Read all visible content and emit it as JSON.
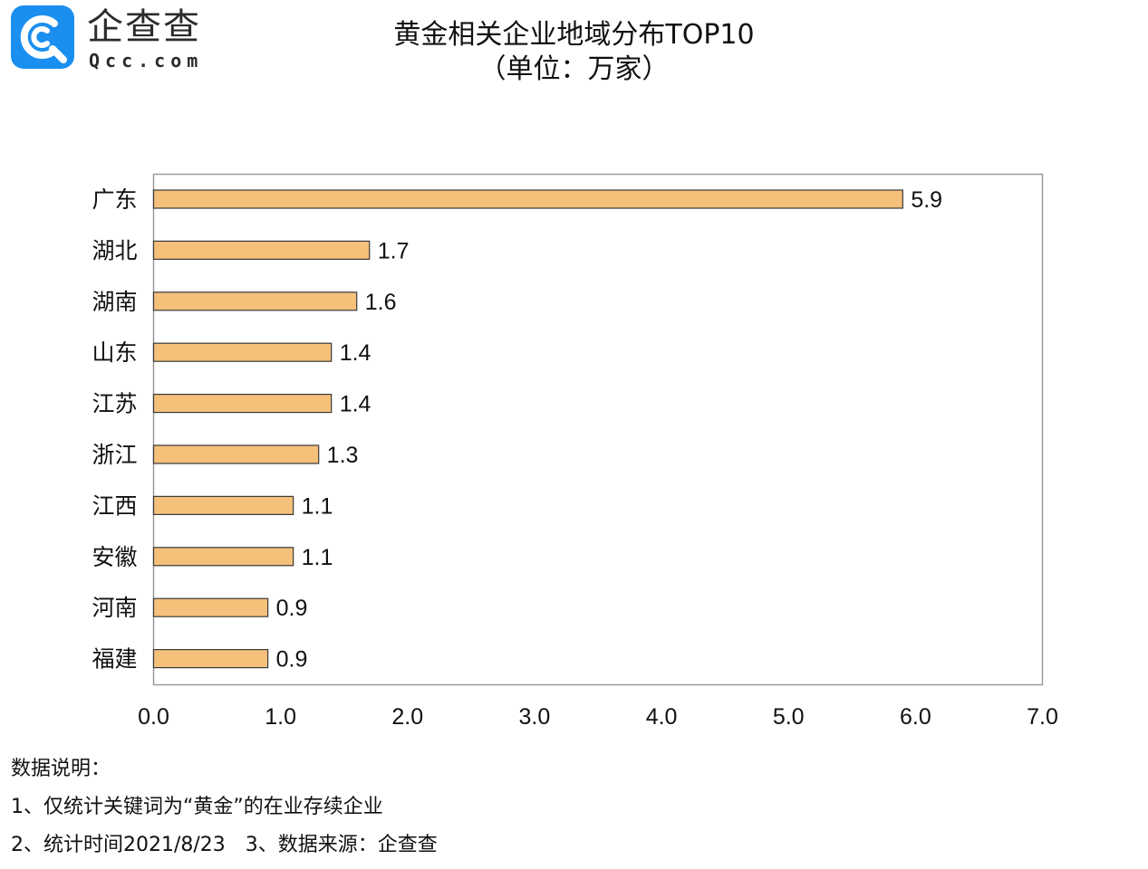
{
  "logo": {
    "name": "企查查",
    "domain": "Qcc.com",
    "color": "#1a8ff0"
  },
  "title": "黄金相关企业地域分布TOP10",
  "subtitle": "（单位：万家）",
  "chart_data": {
    "type": "bar",
    "orientation": "horizontal",
    "categories": [
      "广东",
      "湖北",
      "湖南",
      "山东",
      "江苏",
      "浙江",
      "江西",
      "安徽",
      "河南",
      "福建"
    ],
    "values": [
      5.9,
      1.7,
      1.6,
      1.4,
      1.4,
      1.3,
      1.1,
      1.1,
      0.9,
      0.9
    ],
    "value_labels": [
      "5.9",
      "1.7",
      "1.6",
      "1.4",
      "1.4",
      "1.3",
      "1.1",
      "1.1",
      "0.9",
      "0.9"
    ],
    "xlim": [
      0,
      7
    ],
    "xticks": [
      "0.0",
      "1.0",
      "2.0",
      "3.0",
      "4.0",
      "5.0",
      "6.0",
      "7.0"
    ],
    "grid": false,
    "legend": "none",
    "bar_color": "#f5c07a",
    "bar_edge_color": "#3a3a3a"
  },
  "notes": {
    "heading": "数据说明：",
    "line1": "1、仅统计关键词为“黄金”的在业存续企业",
    "line2": "2、统计时间2021/8/23　3、数据来源：企查查"
  }
}
